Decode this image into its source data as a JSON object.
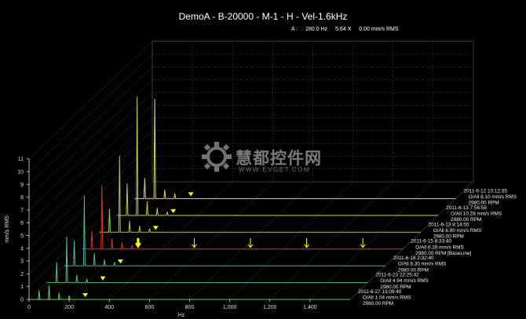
{
  "title": "DemoA - B-20000 - M-1 - H - Vel-1.6kHz",
  "cursor": {
    "label": "A :",
    "frequency": "280.0 Hz",
    "harmonic": "5.64 X",
    "amplitude": "0.00 mm/s RMS"
  },
  "watermark": {
    "text": "慧都控件网",
    "url": "WWW.EVGET.COM",
    "logo": "gear-logo-icon"
  },
  "colors": {
    "axis": "#b5b5b5",
    "grid": "#3a3a3a",
    "marker": "#ffff00",
    "baseline": "#e03030"
  },
  "chart_data": {
    "type": "line",
    "xlabel": "Hz",
    "ylabel": "mm/s RMS",
    "xlim": [
      0,
      1600
    ],
    "ylim": [
      0,
      11
    ],
    "x_ticks": [
      0,
      200,
      400,
      600,
      800,
      1000,
      1200,
      1400
    ],
    "x_tick_labels": [
      "0",
      "200",
      "400",
      "600",
      "800",
      "1,000",
      "1,200",
      "1,400"
    ],
    "y_ticks": [
      0,
      1,
      2,
      3,
      4,
      5,
      6,
      7,
      8,
      9,
      10,
      11
    ],
    "grid": true,
    "series": [
      {
        "date": "2011-6-27 13:09:40",
        "overall": "O/All  1.04  mm/s RMS",
        "speed": "2980.00 RPM",
        "color": "#66c95a",
        "peaks": [
          [
            50,
            0.7
          ],
          [
            100,
            1.1
          ],
          [
            150,
            0.5
          ],
          [
            200,
            0.3
          ]
        ],
        "marker_x": 280
      },
      {
        "date": "2011-6-23 22:25:42",
        "overall": "O/All  4.94  mm/s RMS",
        "speed": "2980.00 RPM",
        "color": "#55bf8a",
        "peaks": [
          [
            50,
            1.6
          ],
          [
            100,
            3.6
          ],
          [
            150,
            0.6
          ],
          [
            200,
            0.3
          ]
        ],
        "marker_x": 280
      },
      {
        "date": "2011-6-18 2:32:40",
        "overall": "O/All  6.30  mm/s RMS",
        "speed": "2980.00 RPM",
        "color": "#4ab5a6",
        "peaks": [
          [
            50,
            2.0
          ],
          [
            100,
            5.5
          ],
          [
            150,
            1.0
          ],
          [
            200,
            0.5
          ],
          [
            250,
            0.3
          ]
        ],
        "marker_x": 280
      },
      {
        "date": "2011-6-15 8:33:40",
        "overall": "O/All  6.20  mm/s RMS",
        "speed": "2980.00 RPM [BaseLine]",
        "color": "#e03030",
        "peaks": [
          [
            50,
            1.4
          ],
          [
            100,
            5.0
          ],
          [
            150,
            0.8
          ],
          [
            200,
            0.5
          ],
          [
            250,
            0.3
          ]
        ],
        "marker_x": 280,
        "harmonic_markers": [
          560,
          840,
          1120,
          1400
        ]
      },
      {
        "date": "2011-6-13 8:14:55",
        "overall": "O/All  6.90  mm/s RMS",
        "speed": "2980.00 RPM",
        "color": "#a5c94a",
        "peaks": [
          [
            50,
            1.8
          ],
          [
            100,
            6.0
          ],
          [
            150,
            0.9
          ],
          [
            200,
            0.5
          ],
          [
            250,
            0.3
          ]
        ],
        "marker_x": 280
      },
      {
        "date": "2011-6-13 7:56:58",
        "overall": "O/All  10.28  mm/s RMS",
        "speed": "2980.00 RPM",
        "color": "#c5cf45",
        "peaks": [
          [
            50,
            2.5
          ],
          [
            100,
            9.3
          ],
          [
            150,
            1.1
          ],
          [
            200,
            0.6
          ],
          [
            250,
            0.3
          ]
        ],
        "marker_x": 280
      },
      {
        "date": "2011-6-12 10:12:35",
        "overall": "O/All  8.10  mm/s RMS",
        "speed": "2980.00 RPM",
        "color": "#d8d860",
        "peaks": [
          [
            50,
            1.6
          ],
          [
            100,
            7.8
          ],
          [
            150,
            0.7
          ],
          [
            200,
            0.4
          ]
        ],
        "marker_x": 280
      }
    ]
  }
}
